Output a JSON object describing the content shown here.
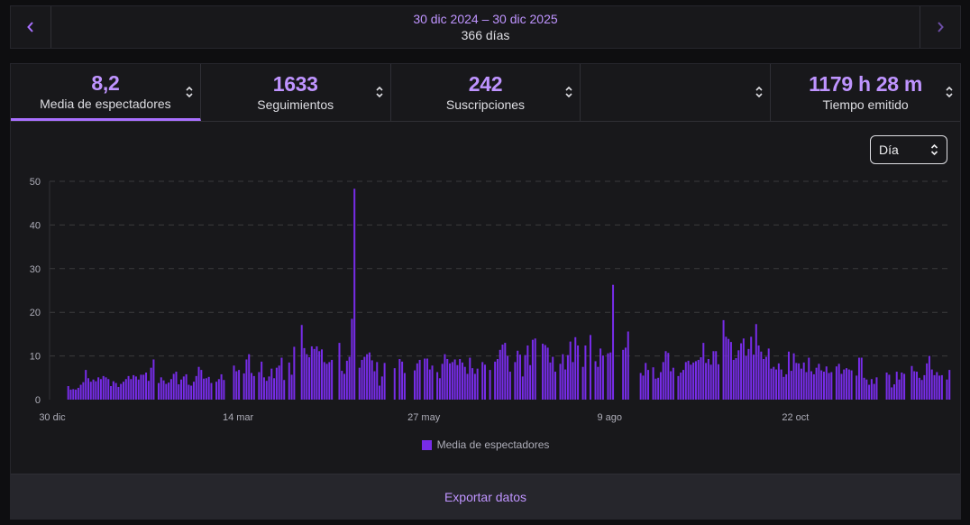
{
  "date_nav": {
    "prev_icon": "chevron-left-icon",
    "next_icon": "chevron-right-icon",
    "range": "30 dic 2024 – 30 dic 2025",
    "days": "366 días"
  },
  "tabs": [
    {
      "value": "8,2",
      "label": "Media de espectadores",
      "active": true
    },
    {
      "value": "1633",
      "label": "Seguimientos",
      "active": false
    },
    {
      "value": "242",
      "label": "Suscripciones",
      "active": false
    },
    {
      "value": "",
      "label": "",
      "active": false
    },
    {
      "value": "1179 h 28 m",
      "label": "Tiempo emitido",
      "active": false
    }
  ],
  "interval_select": {
    "label": "Día",
    "icon": "sort-arrows-icon"
  },
  "colors": {
    "accent": "#a970ff",
    "bar": "#772ce8",
    "grid": "#3a3a3d"
  },
  "chart_data": {
    "type": "bar",
    "title": "",
    "xlabel": "",
    "ylabel": "",
    "ylim": [
      0,
      50
    ],
    "yticks": [
      "0",
      "10",
      "20",
      "30",
      "40",
      "50"
    ],
    "x_ticks": [
      {
        "label": "30 dic",
        "day": 0
      },
      {
        "label": "14 mar",
        "day": 74
      },
      {
        "label": "27 may",
        "day": 148
      },
      {
        "label": "9 ago",
        "day": 222
      },
      {
        "label": "22 oct",
        "day": 296
      }
    ],
    "series": [
      {
        "name": "Media de espectadores",
        "values": [
          0,
          0,
          0,
          0,
          0,
          0,
          3.1,
          2.3,
          2.4,
          2.3,
          2.7,
          3.4,
          4,
          6.8,
          4.9,
          4.1,
          4.6,
          4.2,
          5.1,
          4.7,
          5.4,
          5.1,
          4.7,
          3.1,
          4.2,
          3.8,
          2.9,
          3.6,
          4.1,
          4.7,
          5.4,
          4.7,
          5.6,
          5.3,
          4.6,
          5.7,
          5.7,
          6.2,
          4.3,
          7.3,
          9.2,
          0,
          3.8,
          5.1,
          4.4,
          3.6,
          3.9,
          4.7,
          5.9,
          6.4,
          3.5,
          4.6,
          5.3,
          5.8,
          3.4,
          3.2,
          4.1,
          5.4,
          7.5,
          6.8,
          4.8,
          4.9,
          5.2,
          3.8,
          0,
          4.1,
          4.7,
          5.8,
          4.5,
          0,
          0,
          0,
          7.8,
          6.5,
          6.8,
          0,
          6,
          9.2,
          10.4,
          6.1,
          5.4,
          0,
          6.3,
          8.7,
          5.1,
          4.3,
          5.3,
          7.1,
          4.9,
          7.3,
          7.8,
          9.6,
          4.5,
          0,
          8.5,
          5.7,
          12.1,
          0,
          0,
          17.1,
          11.8,
          10.4,
          9.7,
          12.2,
          11.6,
          12.2,
          11.1,
          11.5,
          8.6,
          8.2,
          8.6,
          9.1,
          0,
          0,
          13,
          6.6,
          5.9,
          8.9,
          9.8,
          18.5,
          48.3,
          0,
          7.3,
          9.1,
          9.8,
          10.4,
          10.8,
          9,
          6.5,
          8.6,
          3.2,
          5.3,
          8.4,
          0,
          0,
          0,
          7.2,
          0,
          9.3,
          8.7,
          6.1,
          0,
          0,
          0,
          6.7,
          8.3,
          9.1,
          0,
          9.4,
          9.4,
          6.9,
          7.8,
          0,
          6.3,
          4.9,
          8.2,
          10.4,
          9.3,
          8.3,
          8.6,
          9.2,
          7.9,
          9.3,
          8.5,
          7.5,
          5.9,
          9.6,
          7.2,
          5.9,
          7.1,
          0,
          8.6,
          8,
          0,
          6.8,
          0,
          8.7,
          9.3,
          11.4,
          12.6,
          13,
          10,
          6.4,
          0,
          8.6,
          11.2,
          10.3,
          5.3,
          10.2,
          12.4,
          7.9,
          13.7,
          14,
          0,
          0,
          12.8,
          12.5,
          11.9,
          8.5,
          9.8,
          6.4,
          0,
          8.2,
          10.4,
          6.9,
          10.2,
          13.3,
          8.6,
          14.3,
          12.4,
          0,
          7.5,
          12.4,
          0,
          14.8,
          0,
          8.8,
          7.5,
          11.7,
          10.1,
          0,
          10.6,
          10.8,
          26.3,
          0,
          0,
          0,
          11.4,
          11.9,
          15.6,
          0,
          0,
          0,
          0,
          6.1,
          5.5,
          8.4,
          6.8,
          0,
          7.4,
          4.8,
          5,
          6.3,
          8.6,
          11.1,
          10.7,
          6.5,
          7.3,
          0,
          5.4,
          6.2,
          6.8,
          8.6,
          8.9,
          8,
          8.5,
          8.8,
          9.1,
          9.7,
          13,
          8.4,
          9.3,
          8,
          11.1,
          11.1,
          8.1,
          0,
          18.2,
          14.4,
          13.9,
          13.2,
          9.1,
          9.5,
          11.3,
          12.9,
          14,
          10,
          11.6,
          14.4,
          10.3,
          17.3,
          12.4,
          11,
          9.3,
          9.8,
          11.7,
          7.1,
          7.5,
          6.9,
          8.3,
          6.9,
          5.2,
          5.8,
          11,
          6.6,
          10.6,
          8.4,
          8.3,
          7.1,
          8.5,
          6.3,
          9.6,
          6.5,
          5.8,
          7.3,
          8.2,
          6.7,
          6.4,
          7.6,
          6.1,
          6.3,
          0,
          7.6,
          8.2,
          5.9,
          6.9,
          7.2,
          6.9,
          6.7,
          0,
          5.5,
          9.6,
          9.6,
          5,
          4.6,
          3.4,
          4.7,
          3.6,
          5.1,
          0,
          0,
          0,
          6.2,
          5.7,
          2.8,
          3.5,
          6.4,
          4.6,
          6.2,
          5.9,
          0,
          0,
          7.7,
          6.5,
          6.4,
          5,
          4.5,
          5.6,
          8.3,
          10,
          6.9,
          5.6,
          6.3,
          5.5,
          5.6,
          0,
          4.6,
          6.8
        ]
      }
    ]
  },
  "legend": {
    "label": "Media de espectadores"
  },
  "export": {
    "label": "Exportar datos"
  }
}
